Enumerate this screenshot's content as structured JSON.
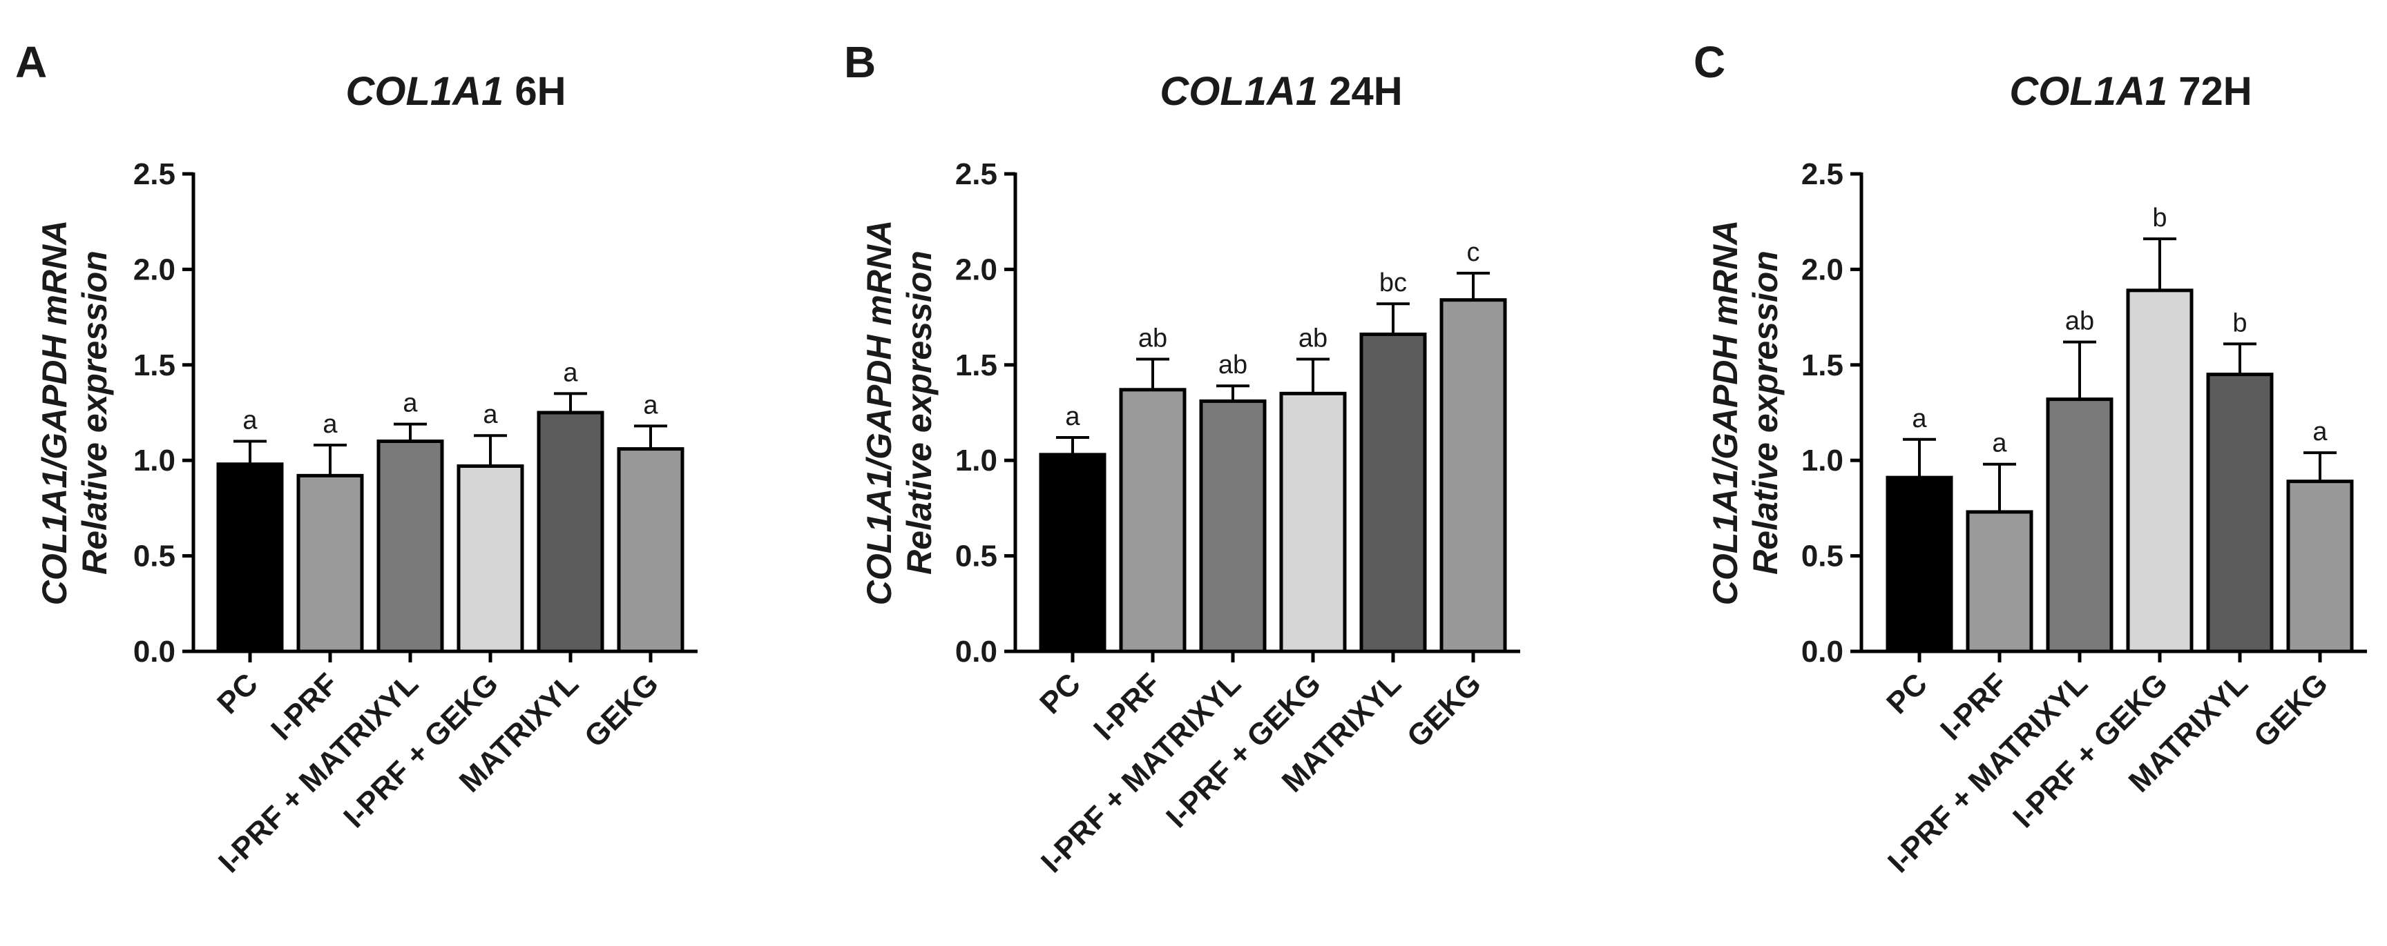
{
  "chart_data": [
    {
      "type": "bar",
      "panel": "A",
      "title_italic": "COL1A1",
      "title_rest": " 6H",
      "ylabel_line1": "COL1A1/GAPDH mRNA",
      "ylabel_line2": "Relative expression",
      "ylim": [
        0,
        2.5
      ],
      "yticks": [
        "0.0",
        "0.5",
        "1.0",
        "1.5",
        "2.0",
        "2.5"
      ],
      "categories": [
        "PC",
        "I-PRF",
        "I-PRF + MATRIXYL",
        "I-PRF + GEKG",
        "MATRIXYL",
        "GEKG"
      ],
      "values": [
        0.98,
        0.92,
        1.1,
        0.97,
        1.25,
        1.06
      ],
      "errors": [
        0.12,
        0.16,
        0.09,
        0.16,
        0.1,
        0.12
      ],
      "labels": [
        "a",
        "a",
        "a",
        "a",
        "a",
        "a"
      ],
      "colors": [
        "#000000",
        "#9a9a9a",
        "#7a7a7a",
        "#d6d6d6",
        "#5c5c5c",
        "#999999"
      ]
    },
    {
      "type": "bar",
      "panel": "B",
      "title_italic": "COL1A1",
      "title_rest": " 24H",
      "ylabel_line1": "COL1A1/GAPDH mRNA",
      "ylabel_line2": "Relative expression",
      "ylim": [
        0,
        2.5
      ],
      "yticks": [
        "0.0",
        "0.5",
        "1.0",
        "1.5",
        "2.0",
        "2.5"
      ],
      "categories": [
        "PC",
        "I-PRF",
        "I-PRF + MATRIXYL",
        "I-PRF + GEKG",
        "MATRIXYL",
        "GEKG"
      ],
      "values": [
        1.03,
        1.37,
        1.31,
        1.35,
        1.66,
        1.84
      ],
      "errors": [
        0.09,
        0.16,
        0.08,
        0.18,
        0.16,
        0.14
      ],
      "labels": [
        "a",
        "ab",
        "ab",
        "ab",
        "bc",
        "c"
      ],
      "colors": [
        "#000000",
        "#9a9a9a",
        "#7a7a7a",
        "#d6d6d6",
        "#5c5c5c",
        "#999999"
      ]
    },
    {
      "type": "bar",
      "panel": "C",
      "title_italic": "COL1A1",
      "title_rest": " 72H",
      "ylabel_line1": "COL1A1/GAPDH mRNA",
      "ylabel_line2": "Relative expression",
      "ylim": [
        0,
        2.5
      ],
      "yticks": [
        "0.0",
        "0.5",
        "1.0",
        "1.5",
        "2.0",
        "2.5"
      ],
      "categories": [
        "PC",
        "I-PRF",
        "I-PRF + MATRIXYL",
        "I-PRF + GEKG",
        "MATRIXYL",
        "GEKG"
      ],
      "values": [
        0.91,
        0.73,
        1.32,
        1.89,
        1.45,
        0.89
      ],
      "errors": [
        0.2,
        0.25,
        0.3,
        0.27,
        0.16,
        0.15
      ],
      "labels": [
        "a",
        "a",
        "ab",
        "b",
        "b",
        "a"
      ],
      "colors": [
        "#000000",
        "#9a9a9a",
        "#7a7a7a",
        "#d6d6d6",
        "#5c5c5c",
        "#999999"
      ]
    }
  ]
}
